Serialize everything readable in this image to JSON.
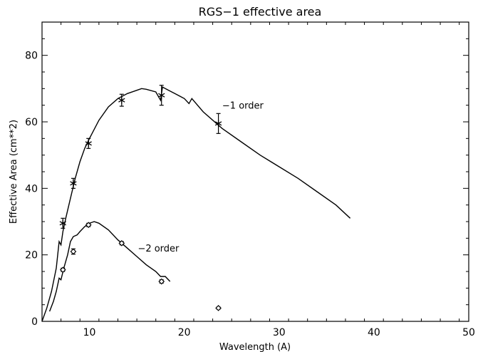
{
  "chart_data": {
    "type": "line",
    "title": "RGS−1 effective area",
    "xlabel": "Wavelength (A)",
    "ylabel": "Effective Area (cm**2)",
    "xlim": [
      5,
      50
    ],
    "ylim": [
      0,
      90
    ],
    "x_ticks": [
      10,
      20,
      30,
      40,
      50
    ],
    "y_ticks": [
      0,
      20,
      40,
      60,
      80
    ],
    "x_tick_labels": [
      "10",
      "20",
      "30",
      "40",
      "50"
    ],
    "y_tick_labels": [
      "0",
      "20",
      "40",
      "60",
      "80"
    ],
    "grid": false,
    "series": [
      {
        "name": "−1 order",
        "color": "#000000",
        "marker": "asterisk",
        "curve": [
          [
            5.0,
            0.0
          ],
          [
            5.5,
            4.0
          ],
          [
            6.0,
            9.0
          ],
          [
            6.5,
            16.0
          ],
          [
            6.8,
            24.0
          ],
          [
            7.0,
            23.0
          ],
          [
            7.2,
            27.0
          ],
          [
            7.5,
            31.0
          ],
          [
            8.0,
            37.0
          ],
          [
            8.5,
            43.0
          ],
          [
            9.0,
            48.0
          ],
          [
            9.5,
            52.0
          ],
          [
            10.0,
            55.0
          ],
          [
            11.0,
            60.5
          ],
          [
            12.0,
            64.5
          ],
          [
            13.0,
            67.0
          ],
          [
            14.0,
            68.5
          ],
          [
            15.0,
            69.5
          ],
          [
            15.5,
            70.0
          ],
          [
            16.0,
            69.8
          ],
          [
            17.0,
            69.0
          ],
          [
            17.5,
            66.5
          ],
          [
            17.7,
            70.5
          ],
          [
            18.0,
            70.0
          ],
          [
            19.0,
            68.5
          ],
          [
            20.0,
            67.0
          ],
          [
            20.5,
            65.5
          ],
          [
            20.8,
            67.0
          ],
          [
            22.0,
            63.0
          ],
          [
            24.0,
            58.0
          ],
          [
            26.0,
            54.0
          ],
          [
            28.0,
            50.0
          ],
          [
            30.0,
            46.5
          ],
          [
            32.0,
            43.0
          ],
          [
            34.0,
            39.0
          ],
          [
            36.0,
            35.0
          ],
          [
            37.5,
            31.0
          ]
        ],
        "points": [
          {
            "x": 7.2,
            "y": 29.5,
            "err": 1.5
          },
          {
            "x": 8.3,
            "y": 41.5,
            "err": 1.5
          },
          {
            "x": 9.9,
            "y": 53.5,
            "err": 1.5
          },
          {
            "x": 13.4,
            "y": 66.5,
            "err": 1.8
          },
          {
            "x": 17.6,
            "y": 68.0,
            "err": 3.0
          },
          {
            "x": 23.6,
            "y": 59.5,
            "err": 3.0
          }
        ]
      },
      {
        "name": "−2 order",
        "color": "#000000",
        "marker": "diamond",
        "curve": [
          [
            5.8,
            3.0
          ],
          [
            6.2,
            6.0
          ],
          [
            6.5,
            9.0
          ],
          [
            6.8,
            13.0
          ],
          [
            7.0,
            12.5
          ],
          [
            7.3,
            16.0
          ],
          [
            7.7,
            20.0
          ],
          [
            8.0,
            24.0
          ],
          [
            8.3,
            25.5
          ],
          [
            8.7,
            26.0
          ],
          [
            9.0,
            27.0
          ],
          [
            9.5,
            28.5
          ],
          [
            10.0,
            29.5
          ],
          [
            10.5,
            30.0
          ],
          [
            11.0,
            29.5
          ],
          [
            12.0,
            27.5
          ],
          [
            13.0,
            24.5
          ],
          [
            14.0,
            22.0
          ],
          [
            15.0,
            19.5
          ],
          [
            16.0,
            17.0
          ],
          [
            17.0,
            15.0
          ],
          [
            17.5,
            13.5
          ],
          [
            18.0,
            13.5
          ],
          [
            18.5,
            12.0
          ]
        ],
        "points": [
          {
            "x": 7.2,
            "y": 15.5,
            "err": 0.5
          },
          {
            "x": 8.3,
            "y": 21.0,
            "err": 0.8
          },
          {
            "x": 9.9,
            "y": 29.0,
            "err": 0.5
          },
          {
            "x": 13.4,
            "y": 23.5,
            "err": 0.5
          },
          {
            "x": 17.6,
            "y": 12.0,
            "err": 0.5
          },
          {
            "x": 23.6,
            "y": 4.0,
            "err": 0.3
          }
        ]
      }
    ],
    "annotations": [
      {
        "text": "−1 order",
        "x": 24.0,
        "y": 64.0
      },
      {
        "text": "−2 order",
        "x": 15.1,
        "y": 21.0
      }
    ]
  }
}
